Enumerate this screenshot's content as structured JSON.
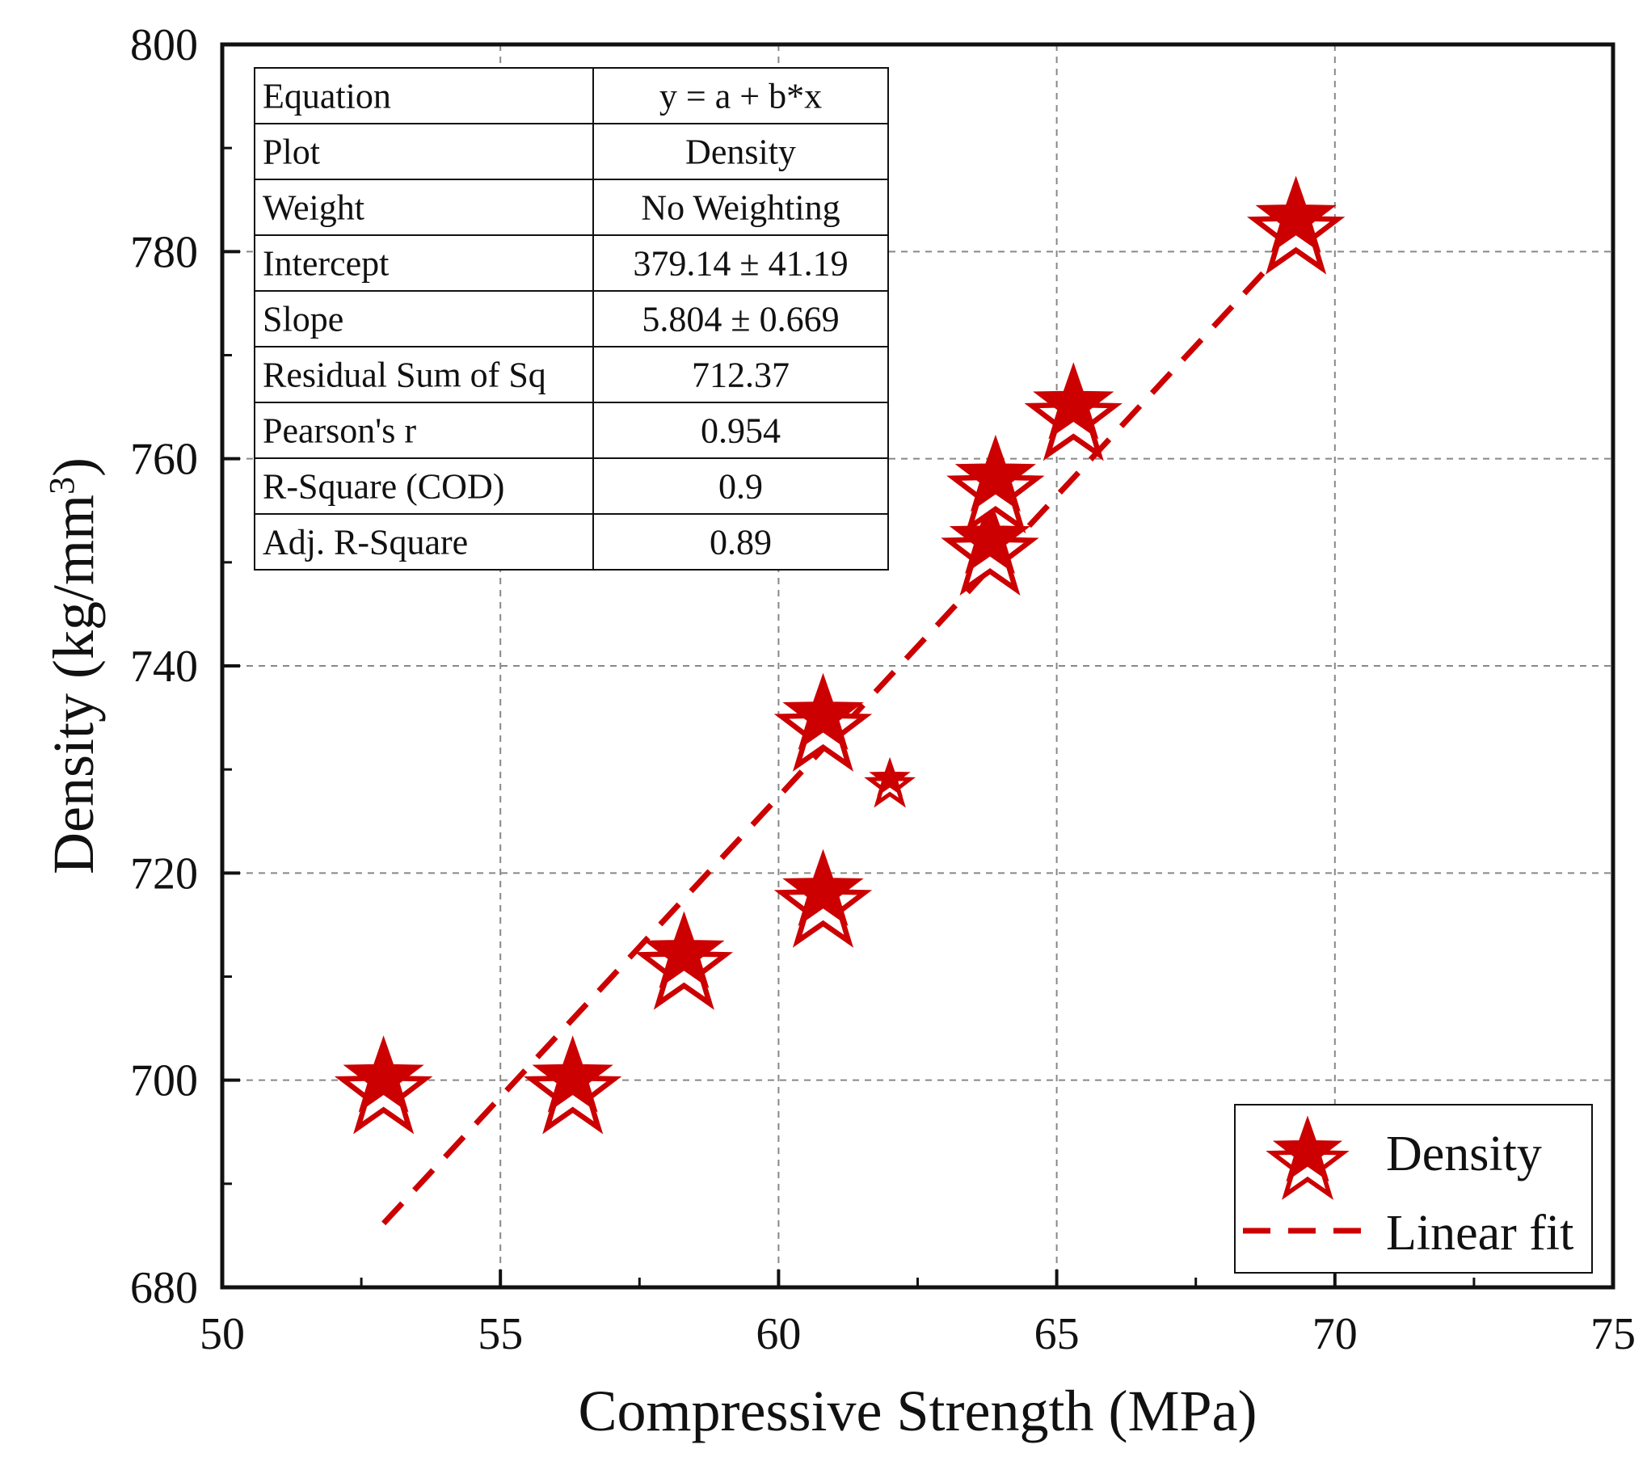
{
  "chart_data": {
    "type": "scatter",
    "xlabel": "Compressive Strength (MPa)",
    "ylabel": "Density (kg/mm",
    "ylabel_superscript": "3",
    "ylabel_close": ")",
    "xlim": [
      50,
      75
    ],
    "ylim": [
      680,
      800
    ],
    "xticks": [
      "50",
      "55",
      "60",
      "65",
      "70",
      "75"
    ],
    "yticks": [
      "680",
      "700",
      "720",
      "740",
      "760",
      "780",
      "800"
    ],
    "grid": true,
    "color": "#cc0000",
    "series": [
      {
        "name": "Density",
        "marker": "star",
        "x": [
          52.9,
          56.3,
          58.3,
          60.8,
          60.8,
          62.0,
          63.8,
          63.9,
          65.3,
          69.3
        ],
        "y": [
          700,
          700,
          712,
          718,
          735,
          729,
          752,
          758,
          765,
          783
        ],
        "sizes": [
          "large",
          "large",
          "large",
          "large",
          "large",
          "small",
          "large",
          "large",
          "large",
          "large"
        ]
      },
      {
        "name": "Linear fit",
        "style": "dashed",
        "intercept": 379.14,
        "slope": 5.804,
        "x_range": [
          52.9,
          69.3
        ]
      }
    ],
    "legend": {
      "position": "bottom-right",
      "entries": [
        "Density",
        "Linear fit"
      ]
    },
    "stats_table": {
      "position": "top-left",
      "rows": [
        [
          "Equation",
          "y = a + b*x"
        ],
        [
          "Plot",
          "Density"
        ],
        [
          "Weight",
          "No Weighting"
        ],
        [
          "Intercept",
          "379.14 ± 41.19"
        ],
        [
          "Slope",
          "5.804 ± 0.669"
        ],
        [
          "Residual Sum of Sq",
          "712.37"
        ],
        [
          "Pearson's r",
          "0.954"
        ],
        [
          "R-Square (COD)",
          "0.9"
        ],
        [
          "Adj. R-Square",
          "0.89"
        ]
      ]
    }
  }
}
